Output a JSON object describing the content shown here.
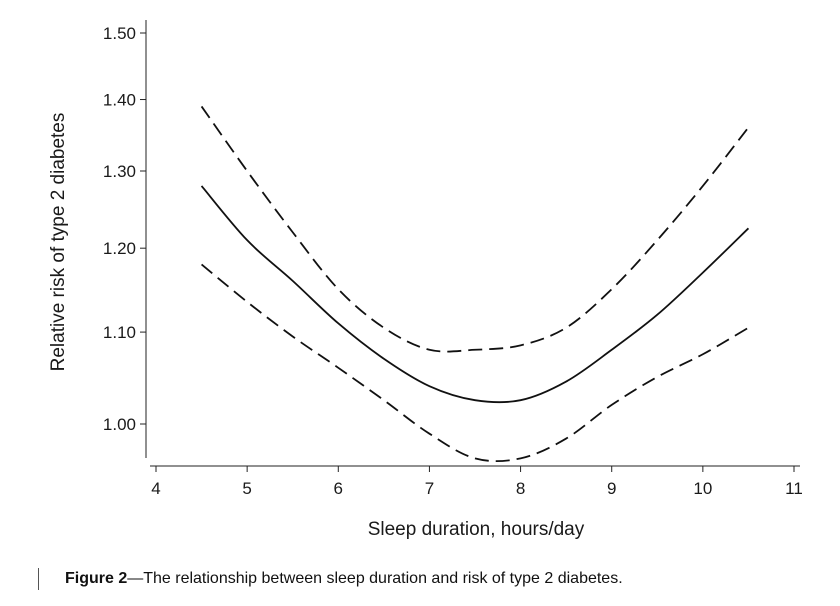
{
  "chart_data": {
    "type": "line",
    "xlabel": "Sleep duration, hours/day",
    "ylabel": "Relative risk of type 2 diabetes",
    "xlim": [
      4,
      11
    ],
    "ylim": [
      0.95,
      1.5
    ],
    "y_scale": "log",
    "x_ticks": [
      4,
      5,
      6,
      7,
      8,
      9,
      10,
      11
    ],
    "x_tick_labels": [
      "4",
      "5",
      "6",
      "7",
      "8",
      "9",
      "10",
      "11"
    ],
    "y_ticks": [
      1.0,
      1.1,
      1.2,
      1.3,
      1.4,
      1.5
    ],
    "y_tick_labels": [
      "1.00",
      "1.10",
      "1.20",
      "1.30",
      "1.40",
      "1.50"
    ],
    "grid": false,
    "legend": "none",
    "series": [
      {
        "style": "solid",
        "x": [
          4.5,
          5,
          5.5,
          6,
          6.5,
          7,
          7.5,
          8,
          8.5,
          9,
          9.5,
          10,
          10.5
        ],
        "values": [
          1.28,
          1.21,
          1.16,
          1.11,
          1.07,
          1.04,
          1.025,
          1.025,
          1.045,
          1.08,
          1.12,
          1.17,
          1.225
        ]
      },
      {
        "style": "dashed",
        "x": [
          4.5,
          5,
          5.5,
          6,
          6.5,
          7,
          7.5,
          8,
          8.5,
          9,
          9.5,
          10,
          10.5
        ],
        "values": [
          1.39,
          1.3,
          1.22,
          1.15,
          1.105,
          1.08,
          1.08,
          1.085,
          1.105,
          1.15,
          1.21,
          1.28,
          1.36
        ]
      },
      {
        "style": "dashed",
        "x": [
          4.5,
          5,
          5.5,
          6,
          6.5,
          7,
          7.5,
          8,
          8.5,
          9,
          9.5,
          10,
          10.5
        ],
        "values": [
          1.18,
          1.135,
          1.095,
          1.06,
          1.025,
          0.99,
          0.965,
          0.965,
          0.985,
          1.02,
          1.05,
          1.075,
          1.105
        ]
      }
    ]
  },
  "caption": {
    "label": "Figure 2",
    "text": "—The relationship between sleep duration and risk of type 2 diabetes."
  }
}
